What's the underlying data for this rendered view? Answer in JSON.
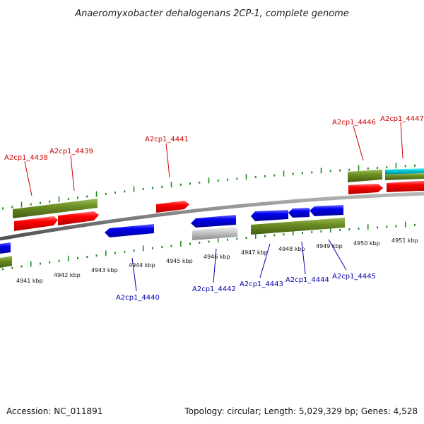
{
  "header": {
    "title": "Anaeromyxobacter dehalogenans 2CP-1, complete genome"
  },
  "footer": {
    "accession": "Accession: NC_011891",
    "summary": "Topology: circular; Length: 5,029,329 bp; Genes: 4,528"
  },
  "colors": {
    "forward_label": "#cc0000",
    "reverse_label": "#0000aa",
    "gene_red": "#ff0000",
    "gene_blue": "#0000ee",
    "gene_olive": "#6b8e23",
    "gene_cyan": "#00c8d8",
    "gene_gray": "#c0c0c0",
    "tick_green": "#228b22",
    "backbone": "#808080"
  },
  "ticks": [
    "4941 kbp",
    "4942 kbp",
    "4943 kbp",
    "4944 kbp",
    "4945 kbp",
    "4946 kbp",
    "4947 kbp",
    "4948 kbp",
    "4949 kbp",
    "4950 kbp",
    "4951 kbp"
  ],
  "labels": {
    "forward": [
      "A2cp1_4438",
      "A2cp1_4439",
      "A2cp1_4441",
      "A2cp1_4446",
      "A2cp1_4447"
    ],
    "reverse": [
      "A2cp1_4440",
      "A2cp1_4442",
      "A2cp1_4443",
      "A2cp1_4444",
      "A2cp1_4445"
    ]
  }
}
